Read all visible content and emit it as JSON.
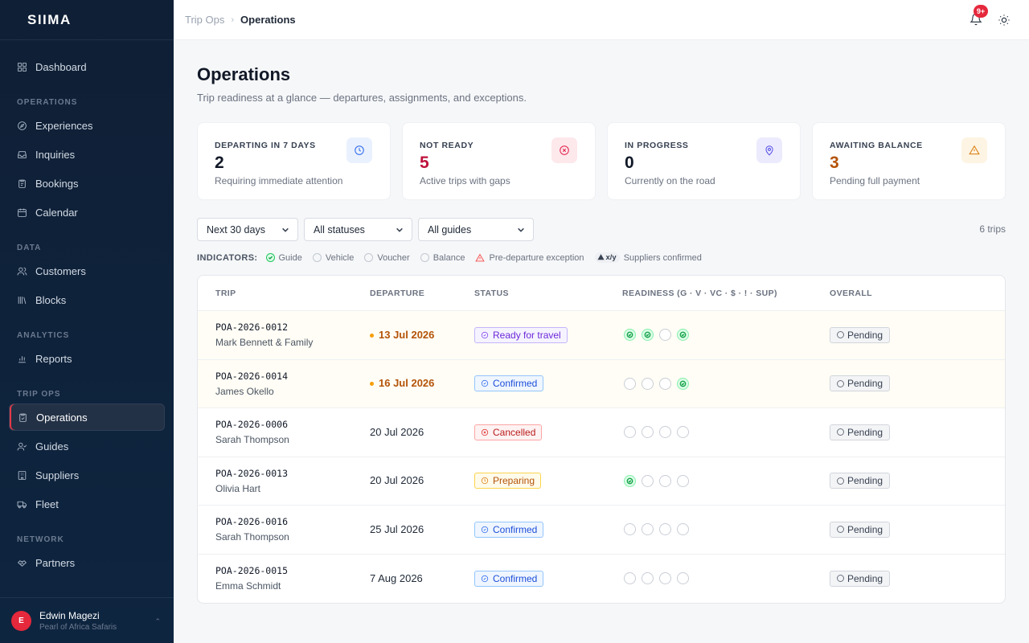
{
  "app": {
    "brand": "SIIMA"
  },
  "sidebar": {
    "top_items": [
      {
        "label": "Dashboard",
        "icon": "grid-icon"
      }
    ],
    "sections": [
      {
        "title": "OPERATIONS",
        "items": [
          {
            "label": "Experiences",
            "icon": "compass-icon"
          },
          {
            "label": "Inquiries",
            "icon": "inbox-icon"
          },
          {
            "label": "Bookings",
            "icon": "clipboard-icon"
          },
          {
            "label": "Calendar",
            "icon": "calendar-icon"
          }
        ]
      },
      {
        "title": "DATA",
        "items": [
          {
            "label": "Customers",
            "icon": "users-icon"
          },
          {
            "label": "Blocks",
            "icon": "library-icon"
          }
        ]
      },
      {
        "title": "ANALYTICS",
        "items": [
          {
            "label": "Reports",
            "icon": "bar-chart-icon"
          }
        ]
      },
      {
        "title": "TRIP OPS",
        "items": [
          {
            "label": "Operations",
            "icon": "clipboard-check-icon",
            "active": true
          },
          {
            "label": "Guides",
            "icon": "user-check-icon"
          },
          {
            "label": "Suppliers",
            "icon": "building-icon"
          },
          {
            "label": "Fleet",
            "icon": "truck-icon"
          }
        ]
      },
      {
        "title": "NETWORK",
        "items": [
          {
            "label": "Partners",
            "icon": "handshake-icon"
          }
        ]
      }
    ],
    "user": {
      "initial": "E",
      "name": "Edwin Magezi",
      "org": "Pearl of Africa Safaris"
    }
  },
  "topbar": {
    "breadcrumb": [
      "Trip Ops",
      "Operations"
    ],
    "notification_badge": "9+"
  },
  "page": {
    "title": "Operations",
    "subtitle": "Trip readiness at a glance — departures, assignments, and exceptions."
  },
  "cards": [
    {
      "label": "DEPARTING IN 7 DAYS",
      "value": "2",
      "sub": "Requiring immediate attention",
      "icon": "clock-icon",
      "value_color": "#111827",
      "icon_color": "#2563eb",
      "icon_bg": "#eaf1fe"
    },
    {
      "label": "NOT READY",
      "value": "5",
      "sub": "Active trips with gaps",
      "icon": "x-circle-icon",
      "value_color": "#be123c",
      "icon_color": "#e11d48",
      "icon_bg": "#fde8ec"
    },
    {
      "label": "IN PROGRESS",
      "value": "0",
      "sub": "Currently on the road",
      "icon": "map-pin-icon",
      "value_color": "#111827",
      "icon_color": "#4f46e5",
      "icon_bg": "#ecebfd"
    },
    {
      "label": "AWAITING BALANCE",
      "value": "3",
      "sub": "Pending full payment",
      "icon": "alert-triangle-icon",
      "value_color": "#b45309",
      "icon_color": "#d97706",
      "icon_bg": "#fdf4e3"
    }
  ],
  "filters": {
    "range": "Next 30 days",
    "status": "All statuses",
    "guide": "All guides",
    "count": "6 trips"
  },
  "indicators": {
    "title": "INDICATORS:",
    "items": [
      "Guide",
      "Vehicle",
      "Voucher",
      "Balance",
      "Pre-departure exception"
    ],
    "sup_chip": "x/y",
    "sup_label": "Suppliers confirmed"
  },
  "table": {
    "headers": [
      "TRIP",
      "DEPARTURE",
      "STATUS",
      "READINESS (G · V · VC · $ · ! · SUP)",
      "OVERALL"
    ],
    "rows": [
      {
        "id": "POA-2026-0012",
        "customer": "Mark Bennett & Family",
        "departure": "13 Jul 2026",
        "urgent": true,
        "status": "Ready for travel",
        "status_kind": "ready",
        "readiness": [
          true,
          true,
          false,
          true
        ],
        "overall": "Pending"
      },
      {
        "id": "POA-2026-0014",
        "customer": "James Okello",
        "departure": "16 Jul 2026",
        "urgent": true,
        "status": "Confirmed",
        "status_kind": "confirmed",
        "readiness": [
          false,
          false,
          false,
          true
        ],
        "overall": "Pending"
      },
      {
        "id": "POA-2026-0006",
        "customer": "Sarah Thompson",
        "departure": "20 Jul 2026",
        "urgent": false,
        "status": "Cancelled",
        "status_kind": "cancelled",
        "readiness": [
          false,
          false,
          false,
          false
        ],
        "overall": "Pending"
      },
      {
        "id": "POA-2026-0013",
        "customer": "Olivia Hart",
        "departure": "20 Jul 2026",
        "urgent": false,
        "status": "Preparing",
        "status_kind": "preparing",
        "readiness": [
          true,
          false,
          false,
          false
        ],
        "overall": "Pending"
      },
      {
        "id": "POA-2026-0016",
        "customer": "Sarah Thompson",
        "departure": "25 Jul 2026",
        "urgent": false,
        "status": "Confirmed",
        "status_kind": "confirmed",
        "readiness": [
          false,
          false,
          false,
          false
        ],
        "overall": "Pending"
      },
      {
        "id": "POA-2026-0015",
        "customer": "Emma Schmidt",
        "departure": "7 Aug 2026",
        "urgent": false,
        "status": "Confirmed",
        "status_kind": "confirmed",
        "readiness": [
          false,
          false,
          false,
          false
        ],
        "overall": "Pending"
      }
    ]
  }
}
